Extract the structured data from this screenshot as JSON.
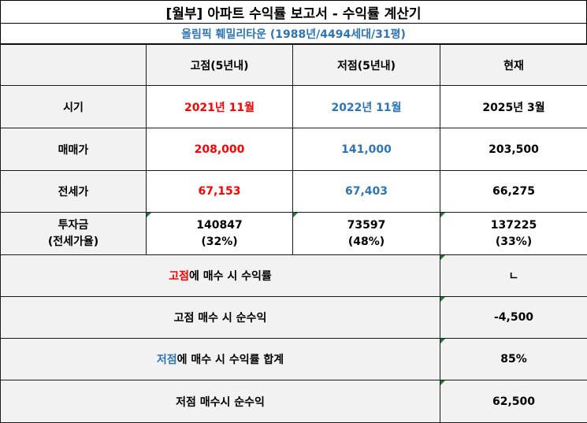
{
  "title": "[월부] 아파트 수익률 보고서 - 수익률 계산기",
  "subtitle": "올림픽 훼밀리타운 (1988년/4494세대/31평)",
  "headers": [
    "",
    "고점(5년내)",
    "저점(5년내)",
    "현재"
  ],
  "rows": [
    {
      "label": "시기",
      "high": "2021년 11월",
      "low": "2022년 11월",
      "current": "2025년 3월"
    },
    {
      "label": "매매가",
      "high": "208,000",
      "low": "141,000",
      "current": "203,500"
    },
    {
      "label": "전세가",
      "high": "67,153",
      "low": "67,403",
      "current": "66,275"
    }
  ],
  "investment": {
    "label_line1": "투자금",
    "label_line2": "(전세가율)",
    "high_amount": "140847",
    "high_ratio": "(32%)",
    "low_amount": "73597",
    "low_ratio": "(48%)",
    "current_amount": "137225",
    "current_ratio": "(33%)"
  },
  "summary": [
    {
      "highlight": "고점",
      "rest": "에 매수 시 수익률",
      "value": "ㄴ",
      "color": "#ff0000"
    },
    {
      "highlight": "",
      "rest": "고점 매수 시 순수익",
      "value": "-4,500",
      "color": ""
    },
    {
      "highlight": "저점",
      "rest": "에 매수 시 수익률 합계",
      "value": "85%",
      "color": "#2e75b6"
    },
    {
      "highlight": "",
      "rest": "저점 매수시 순수익",
      "value": "62,500",
      "color": ""
    }
  ],
  "colors": {
    "high": "#ff0000",
    "low": "#2e75b6",
    "header_bg": "#f2f2f2"
  }
}
